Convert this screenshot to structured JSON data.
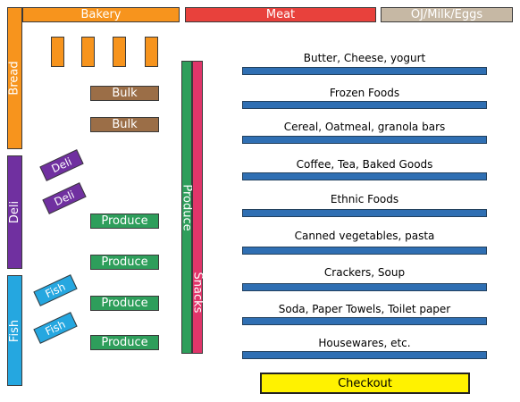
{
  "colors": {
    "bakery": "#f7941d",
    "meat": "#e8413c",
    "dairy": "#c6b8a4",
    "deli": "#7030a0",
    "fish": "#25a7e0",
    "bulk": "#9b6e47",
    "produce": "#2e9e5b",
    "snacks": "#e0356a",
    "aisle": "#2f6fb3",
    "checkout": "#fff200"
  },
  "top_sections": {
    "bakery": "Bakery",
    "meat": "Meat",
    "dairy": "OJ/Milk/Eggs"
  },
  "left_sections": {
    "bread": "Bread",
    "deli": "Deli",
    "fish": "Fish"
  },
  "tables": {
    "deli": [
      "Deli",
      "Deli"
    ],
    "fish": [
      "Fish",
      "Fish"
    ],
    "bulk": [
      "Bulk",
      "Bulk"
    ],
    "produce": [
      "Produce",
      "Produce",
      "Produce",
      "Produce"
    ]
  },
  "middle_aisles": {
    "produce": "Produce",
    "snacks": "Snacks"
  },
  "aisles": [
    "Butter, Cheese, yogurt",
    "Frozen Foods",
    "Cereal, Oatmeal, granola bars",
    "Coffee, Tea, Baked Goods",
    "Ethnic Foods",
    "Canned vegetables, pasta",
    "Crackers, Soup",
    "Soda, Paper Towels, Toilet paper",
    "Housewares, etc."
  ],
  "checkout": "Checkout"
}
